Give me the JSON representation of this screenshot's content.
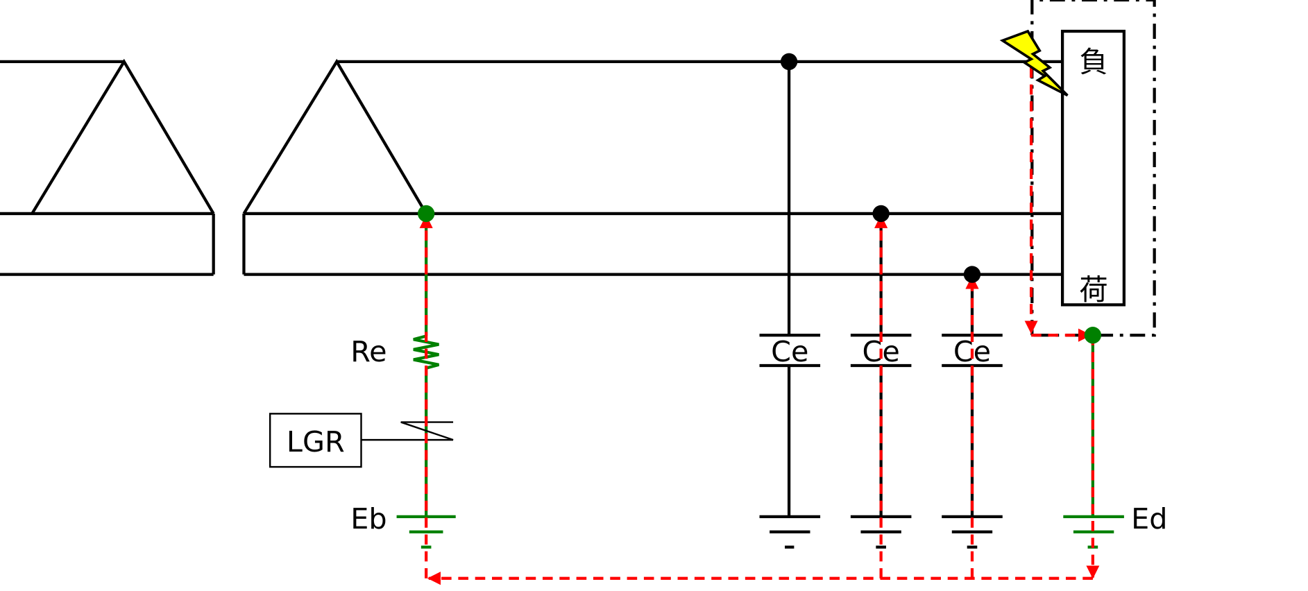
{
  "labels": {
    "re": "Re",
    "lgr": "LGR",
    "eb": "Eb",
    "ed": "Ed",
    "ce1": "Ce",
    "ce2": "Ce",
    "ce3": "Ce",
    "load_top": "負",
    "load_bottom": "荷"
  },
  "colors": {
    "wire": "#000000",
    "fault_current": "#ff0000",
    "ground_path": "#008000",
    "fault_flash": "#ffff00"
  },
  "icons": {
    "fault": "lightning-bolt-icon",
    "ground": "ground-icon"
  }
}
